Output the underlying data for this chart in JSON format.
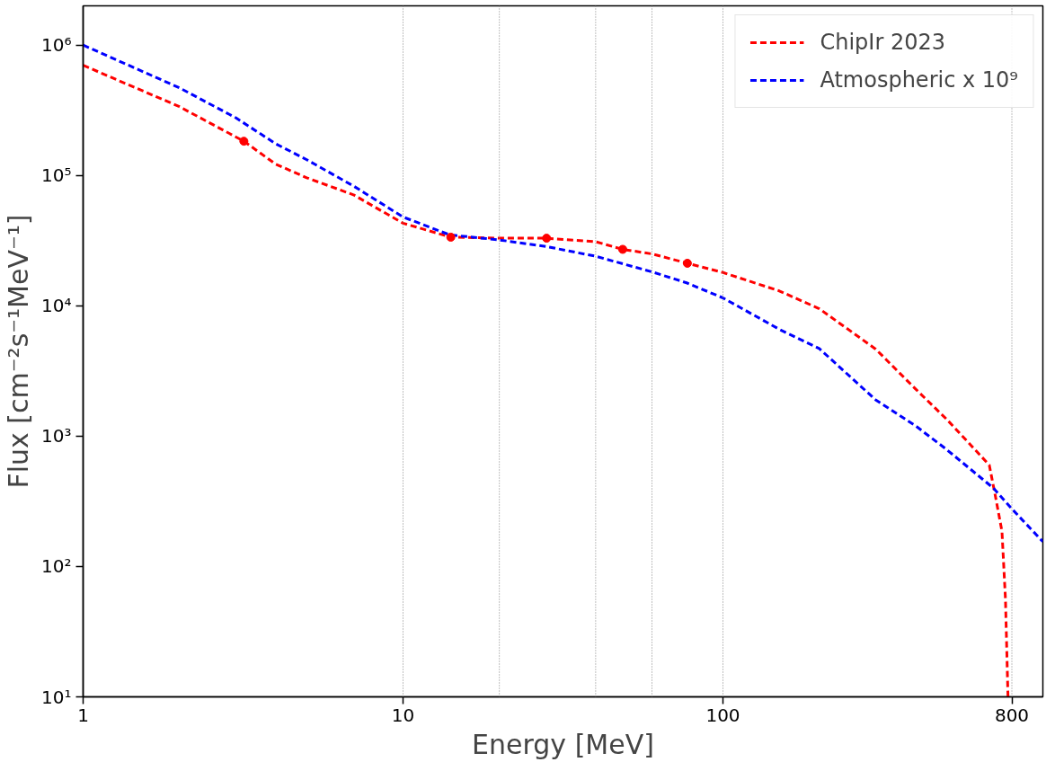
{
  "chart_data": {
    "type": "line",
    "xlabel": "Energy [MeV]",
    "ylabel": "Flux [cm⁻²s⁻¹MeV⁻¹]",
    "log": "xy",
    "xlim": [
      1,
      1000
    ],
    "ylim": [
      10,
      2000000
    ],
    "xticks": [
      1,
      10,
      100,
      800
    ],
    "yticks": [
      {
        "value": 10,
        "label": "10¹"
      },
      {
        "value": 100,
        "label": "10²"
      },
      {
        "value": 1000,
        "label": "10³"
      },
      {
        "value": 10000,
        "label": "10⁴"
      },
      {
        "value": 100000,
        "label": "10⁵"
      },
      {
        "value": 1000000,
        "label": "10⁶"
      }
    ],
    "grid": false,
    "legend": "top right",
    "ref_lines": [
      {
        "axis": "x",
        "value": 10,
        "color": "#808080",
        "line_style": "dotted"
      },
      {
        "axis": "x",
        "value": 20,
        "color": "#808080",
        "line_style": "dotted"
      },
      {
        "axis": "x",
        "value": 40,
        "color": "#808080",
        "line_style": "dotted"
      },
      {
        "axis": "x",
        "value": 60,
        "color": "#808080",
        "line_style": "dotted"
      },
      {
        "axis": "x",
        "value": 100,
        "color": "#808080",
        "line_style": "dotted"
      },
      {
        "axis": "x",
        "value": 800,
        "color": "#808080",
        "line_style": "dotted"
      }
    ],
    "series": [
      {
        "name": "ChipIr 2023",
        "color": "#ff0000",
        "line_style": "dashed",
        "x": [
          1,
          2,
          3.18,
          4,
          5,
          7,
          10,
          14.1,
          20,
          28.1,
          40,
          48.6,
          60,
          77.4,
          100,
          150,
          200,
          300,
          400,
          500,
          600,
          680,
          710,
          745,
          764,
          778
        ],
        "values": [
          700000,
          337000,
          183000,
          122000,
          96000,
          71000,
          43000,
          33600,
          33000,
          33000,
          31000,
          27100,
          25000,
          21200,
          18000,
          13000,
          9500,
          4660,
          2300,
          1350,
          836,
          600,
          350,
          186,
          56,
          10
        ]
      },
      {
        "name": "Atmospheric x 10⁹",
        "color": "#0000ff",
        "line_style": "dashed",
        "x": [
          1,
          2,
          3,
          4,
          5,
          7,
          10,
          14,
          20,
          28,
          40,
          60,
          77,
          100,
          150,
          200,
          300,
          400,
          500,
          700,
          800,
          1000
        ],
        "values": [
          1000000,
          470000,
          277000,
          175000,
          132000,
          83000,
          48000,
          35000,
          32000,
          28500,
          24000,
          18200,
          15000,
          11500,
          6600,
          4700,
          1900,
          1200,
          790,
          400,
          277,
          155
        ]
      },
      {
        "type": "scatter",
        "color": "#ff0000",
        "marker": "circle",
        "x": [
          3.18,
          14.1,
          28.1,
          48.6,
          77.4
        ],
        "values": [
          183000,
          33600,
          33000,
          27100,
          21200
        ]
      }
    ]
  }
}
